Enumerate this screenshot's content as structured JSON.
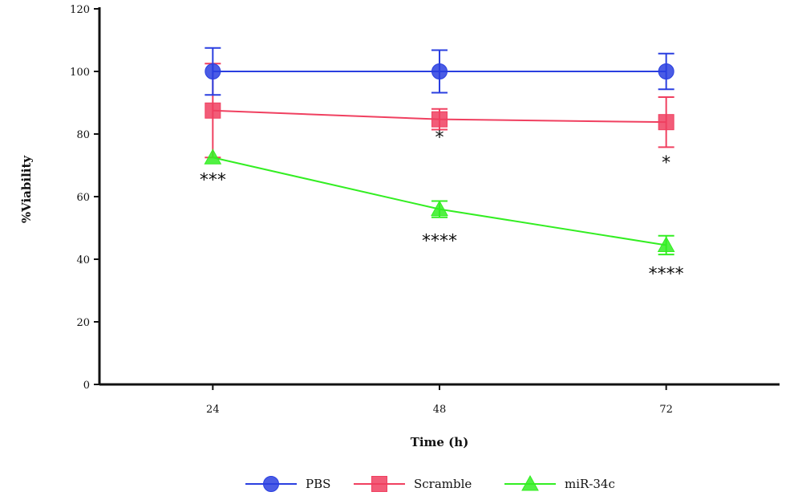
{
  "chart_data": {
    "type": "line",
    "title": "",
    "xlabel": "Time (h)",
    "ylabel": "%Viability",
    "x": [
      24,
      48,
      72
    ],
    "xlim": [
      12,
      84
    ],
    "ylim": [
      0,
      120
    ],
    "yticks": [
      0,
      20,
      40,
      60,
      80,
      100,
      120
    ],
    "grid": false,
    "legend_position": "bottom",
    "series": [
      {
        "name": "PBS",
        "marker": "circle",
        "color": "#2a3fe0",
        "values": [
          100,
          100,
          100
        ],
        "err_upper": [
          107.5,
          106.8,
          105.7
        ],
        "err_lower": [
          92.5,
          93.2,
          94.3
        ]
      },
      {
        "name": "Scramble",
        "marker": "square",
        "color": "#f04060",
        "values": [
          87.5,
          84.7,
          83.8
        ],
        "err_upper": [
          102.5,
          88.0,
          91.8
        ],
        "err_lower": [
          72.5,
          81.4,
          75.8
        ]
      },
      {
        "name": "miR-34c",
        "marker": "triangle",
        "color": "#33ee22",
        "values": [
          72.5,
          56.0,
          44.5
        ],
        "err_upper": [
          72.5,
          58.6,
          47.5
        ],
        "err_lower": [
          72.5,
          53.4,
          41.5
        ]
      }
    ],
    "annotations": [
      {
        "text": "***",
        "x": 24,
        "y": 63.5
      },
      {
        "text": "*",
        "x": 48,
        "y": 77
      },
      {
        "text": "****",
        "x": 48,
        "y": 44
      },
      {
        "text": "*",
        "x": 72,
        "y": 69
      },
      {
        "text": "****",
        "x": 72,
        "y": 33.5
      }
    ]
  }
}
